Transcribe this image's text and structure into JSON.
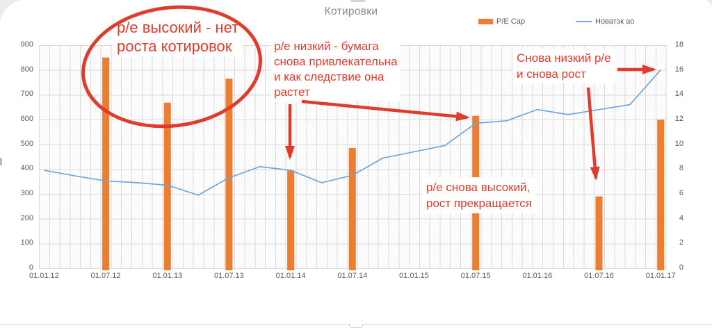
{
  "surface": {
    "background": "#ececec",
    "card_background": "#ffffff"
  },
  "title": "Котировки",
  "legend": {
    "items": [
      {
        "label": "P/E Cap",
        "swatch": "bar",
        "color": "#ED7D31"
      },
      {
        "label": "Новатэк ао",
        "swatch": "line",
        "color": "#6EA6DB"
      }
    ]
  },
  "chart_data": {
    "type": "combo",
    "title": "Котировки",
    "grid": true,
    "plot_background": "diagonal-hatch",
    "legend_position": "top",
    "categories": [
      "01.01.12",
      "01.07.12",
      "01.01.13",
      "01.07.13",
      "01.01.14",
      "01.07.14",
      "01.01.15",
      "01.07.15",
      "01.01.16",
      "01.07.16",
      "01.01.17"
    ],
    "left_axis": {
      "series": "P/E Cap",
      "min": 0,
      "max": 900,
      "step": 100,
      "ticks": [
        900,
        800,
        700,
        600,
        500,
        400,
        300,
        200,
        100,
        0
      ]
    },
    "right_axis": {
      "series": "Новатэк ао",
      "min": 0,
      "max": 18,
      "step": 2,
      "ticks": [
        18,
        16,
        14,
        12,
        10,
        8,
        6,
        4,
        2,
        0
      ]
    },
    "series": [
      {
        "name": "P/E Cap",
        "type": "bar",
        "axis": "left",
        "color": "#ED7D31",
        "points": [
          {
            "x": "01.07.12",
            "y": 850
          },
          {
            "x": "01.01.13",
            "y": 668
          },
          {
            "x": "01.07.13",
            "y": 765
          },
          {
            "x": "01.01.14",
            "y": 395
          },
          {
            "x": "01.07.14",
            "y": 485
          },
          {
            "x": "01.07.15",
            "y": 615
          },
          {
            "x": "01.07.16",
            "y": 290
          },
          {
            "x": "01.01.17",
            "y": 600
          }
        ]
      },
      {
        "name": "Новатэк ао",
        "type": "line",
        "axis": "right",
        "color": "#6EA6DB",
        "t_unit": "months since 01.01.12",
        "points": [
          {
            "t": 0,
            "y": 7.9
          },
          {
            "t": 3,
            "y": 7.45
          },
          {
            "t": 6,
            "y": 7.05
          },
          {
            "t": 9,
            "y": 6.9
          },
          {
            "t": 12,
            "y": 6.7
          },
          {
            "t": 15,
            "y": 5.9
          },
          {
            "t": 18,
            "y": 7.3
          },
          {
            "t": 21,
            "y": 8.2
          },
          {
            "t": 24,
            "y": 7.9
          },
          {
            "t": 27,
            "y": 6.9
          },
          {
            "t": 30,
            "y": 7.5
          },
          {
            "t": 33,
            "y": 8.9
          },
          {
            "t": 36,
            "y": 9.4
          },
          {
            "t": 39,
            "y": 9.9
          },
          {
            "t": 42,
            "y": 11.7
          },
          {
            "t": 45,
            "y": 11.9
          },
          {
            "t": 48,
            "y": 12.8
          },
          {
            "t": 51,
            "y": 12.4
          },
          {
            "t": 54,
            "y": 12.8
          },
          {
            "t": 57,
            "y": 13.2
          },
          {
            "t": 60,
            "y": 16
          }
        ]
      }
    ]
  },
  "annotations": {
    "color": "#E03C2D",
    "items": [
      {
        "id": "high-pe",
        "text": "р/е высокий - нет\nроста котировок",
        "shape": "ellipse around 2012-2013 bars"
      },
      {
        "id": "low-pe",
        "text": "р/е низкий - бумага\nснова привлекательна\nи как следствие она\nрастет",
        "arrows": [
          "down-to-01.01.14-bar",
          "right-to-01.07.15-line"
        ]
      },
      {
        "id": "low-pe-again",
        "text": "Снова низкий р/е\nи снова рост",
        "arrows": [
          "right-to-line-end"
        ]
      },
      {
        "id": "high-pe-again",
        "text": "р/е снова высокий,\nрост прекращается",
        "arrows": [
          "down-to-01.07.16-bar"
        ]
      }
    ]
  }
}
